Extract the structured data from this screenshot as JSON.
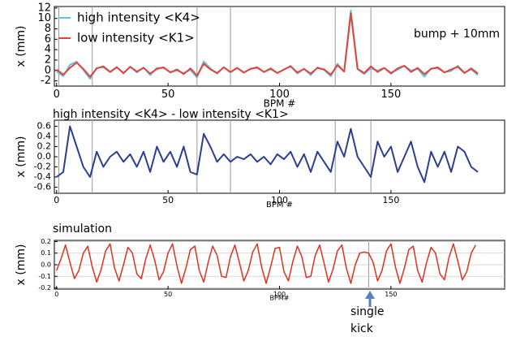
{
  "chart_data": [
    {
      "type": "line",
      "y_label": "x (mm)",
      "x_label": "BPM #",
      "annotation": "bump + 10mm",
      "legend": "upper left",
      "x": [
        0,
        3,
        6,
        9,
        12,
        15,
        18,
        21,
        24,
        27,
        30,
        33,
        36,
        39,
        42,
        45,
        48,
        51,
        54,
        57,
        60,
        63,
        66,
        69,
        72,
        75,
        78,
        81,
        84,
        87,
        90,
        93,
        96,
        99,
        102,
        105,
        108,
        111,
        114,
        117,
        120,
        123,
        126,
        129,
        132,
        135,
        138,
        141,
        144,
        147,
        150,
        153,
        156,
        159,
        162,
        165,
        168,
        171,
        174,
        177,
        180,
        183,
        186,
        189
      ],
      "series": [
        {
          "name": "high intensity <K4>",
          "color": "#5fc3e4",
          "values": [
            -0.2,
            -1.1,
            1.1,
            1.7,
            0.1,
            -1.6,
            0.5,
            0.6,
            -0.3,
            0.7,
            -0.6,
            0.75,
            -0.4,
            0.6,
            -0.9,
            0.5,
            0.5,
            -0.3,
            0.0,
            -0.5,
            0.1,
            -1.35,
            1.75,
            0.4,
            -0.6,
            0.65,
            -0.4,
            0.5,
            -0.45,
            0.35,
            0.5,
            -0.3,
            0.25,
            -0.45,
            0.15,
            0.9,
            -0.6,
            0.35,
            -0.9,
            0.6,
            0.1,
            -1.1,
            1.3,
            -0.2,
            11.55,
            0.3,
            -0.7,
            0.4,
            0.0,
            0.5,
            -0.4,
            0.1,
            0.9,
            0.0,
            0.3,
            -1.2,
            0.4,
            0.4,
            -0.3,
            -0.1,
            0.9,
            -0.4,
            0.2,
            -0.9
          ]
        },
        {
          "name": "low intensity <K1>",
          "color": "#e8413a",
          "values": [
            0.2,
            -0.8,
            0.5,
            1.5,
            0.3,
            -1.2,
            0.4,
            0.8,
            -0.3,
            0.6,
            -0.5,
            0.7,
            -0.2,
            0.5,
            -0.6,
            0.3,
            0.6,
            -0.4,
            0.2,
            -0.7,
            0.4,
            -1.0,
            1.3,
            0.2,
            -0.5,
            0.6,
            -0.3,
            0.5,
            -0.4,
            0.3,
            0.6,
            -0.3,
            0.4,
            -0.5,
            0.2,
            0.8,
            -0.4,
            0.3,
            -0.6,
            0.5,
            0.2,
            -0.8,
            1.0,
            -0.2,
            11,
            0.3,
            -0.5,
            0.8,
            -0.3,
            0.5,
            -0.6,
            0.4,
            0.9,
            -0.3,
            0.5,
            -0.7,
            0.3,
            0.6,
            -0.4,
            0.2,
            0.7,
            -0.5,
            0.4,
            -0.6
          ]
        }
      ],
      "xlim": [
        -1,
        201
      ],
      "xticks": [
        0,
        50,
        100,
        150
      ],
      "ylim": [
        -3,
        12.3
      ],
      "yticks": [
        -2,
        0,
        2,
        4,
        6,
        8,
        10,
        12
      ],
      "vlines": [
        1,
        16,
        63,
        78,
        125,
        141
      ]
    },
    {
      "type": "line",
      "title": "high intensity <K4> - low intensity <K1>",
      "y_label": "x (mm)",
      "x_label": "BPM #",
      "x": [
        0,
        3,
        6,
        9,
        12,
        15,
        18,
        21,
        24,
        27,
        30,
        33,
        36,
        39,
        42,
        45,
        48,
        51,
        54,
        57,
        60,
        63,
        66,
        69,
        72,
        75,
        78,
        81,
        84,
        87,
        90,
        93,
        96,
        99,
        102,
        105,
        108,
        111,
        114,
        117,
        120,
        123,
        126,
        129,
        132,
        135,
        138,
        141,
        144,
        147,
        150,
        153,
        156,
        159,
        162,
        165,
        168,
        171,
        174,
        177,
        180,
        183,
        186,
        189
      ],
      "series": [
        {
          "color": "#2b3f93",
          "values": [
            -0.4,
            -0.3,
            0.6,
            0.2,
            -0.2,
            -0.4,
            0.1,
            -0.2,
            0.0,
            0.1,
            -0.1,
            0.05,
            -0.2,
            0.1,
            -0.3,
            0.2,
            -0.1,
            0.1,
            -0.2,
            0.2,
            -0.3,
            -0.35,
            0.45,
            0.2,
            -0.1,
            0.05,
            -0.1,
            0.0,
            -0.05,
            0.05,
            -0.1,
            0.0,
            -0.15,
            0.05,
            -0.05,
            0.1,
            -0.2,
            0.05,
            -0.3,
            0.1,
            -0.1,
            -0.3,
            0.3,
            0.0,
            0.55,
            0.0,
            -0.2,
            -0.4,
            0.3,
            0.0,
            0.2,
            -0.3,
            0.0,
            0.3,
            -0.2,
            -0.5,
            0.1,
            -0.2,
            0.1,
            -0.3,
            0.2,
            0.1,
            -0.2,
            -0.3
          ]
        }
      ],
      "xlim": [
        -1,
        201
      ],
      "xticks": [
        0,
        50,
        100,
        150
      ],
      "ylim": [
        -0.72,
        0.72
      ],
      "yticks": [
        -0.6,
        -0.4,
        -0.2,
        {
          "value": 0,
          "label": "0.0"
        },
        0.2,
        0.4,
        0.6
      ],
      "vlines": [
        1,
        16,
        63,
        78,
        125,
        141
      ]
    },
    {
      "type": "line",
      "title": "simulation",
      "y_label": "x (mm)",
      "x_label": "BPM#",
      "annotation": [
        "single",
        "kick"
      ],
      "x": [
        0,
        2,
        4,
        6,
        8,
        10,
        12,
        14,
        16,
        18,
        20,
        22,
        24,
        26,
        28,
        30,
        32,
        34,
        36,
        38,
        40,
        42,
        44,
        46,
        48,
        50,
        52,
        54,
        56,
        58,
        60,
        62,
        64,
        66,
        68,
        70,
        72,
        74,
        76,
        78,
        80,
        82,
        84,
        86,
        88,
        90,
        92,
        94,
        96,
        98,
        100,
        102,
        104,
        106,
        108,
        110,
        112,
        114,
        116,
        118,
        120,
        122,
        124,
        126,
        128,
        130,
        132,
        134,
        136,
        138,
        140,
        142,
        144,
        146,
        148,
        150,
        152,
        154,
        156,
        158,
        160,
        162,
        164,
        166,
        168,
        170,
        172,
        174,
        176,
        178,
        180,
        182,
        184,
        186,
        188
      ],
      "series": [
        {
          "color": "#e2301f",
          "values": [
            -0.05,
            0.05,
            0.17,
            0.02,
            -0.12,
            -0.05,
            0.1,
            0.16,
            -0.02,
            -0.15,
            -0.04,
            0.12,
            0.18,
            -0.03,
            -0.14,
            0.0,
            0.15,
            0.1,
            -0.08,
            -0.12,
            0.05,
            0.17,
            0.04,
            -0.13,
            -0.06,
            0.1,
            0.18,
            -0.01,
            -0.16,
            -0.03,
            0.13,
            0.16,
            -0.05,
            -0.15,
            0.02,
            0.16,
            0.08,
            -0.1,
            -0.11,
            0.07,
            0.17,
            0.02,
            -0.14,
            -0.05,
            0.11,
            0.18,
            -0.02,
            -0.16,
            -0.02,
            0.14,
            0.15,
            -0.06,
            -0.14,
            0.03,
            0.16,
            0.07,
            -0.11,
            -0.1,
            0.08,
            0.17,
            0.01,
            -0.15,
            -0.04,
            0.12,
            0.17,
            -0.03,
            -0.16,
            0.0,
            0.1,
            0.11,
            0.1,
            0.02,
            -0.14,
            -0.05,
            0.12,
            0.18,
            -0.02,
            -0.16,
            -0.03,
            0.13,
            0.16,
            -0.05,
            -0.15,
            0.02,
            0.15,
            0.1,
            -0.08,
            -0.13,
            0.06,
            0.18,
            0.03,
            -0.13,
            -0.06,
            0.1,
            0.17
          ]
        }
      ],
      "xlim": [
        -1,
        201
      ],
      "xticks": [
        0,
        50,
        100,
        150
      ],
      "ylim": [
        -0.21,
        0.21
      ],
      "yticks": [
        -0.2,
        -0.1,
        {
          "value": 0,
          "label": "0.0"
        },
        0.1,
        0.2
      ],
      "grid": true,
      "vlines": [
        140
      ]
    }
  ]
}
